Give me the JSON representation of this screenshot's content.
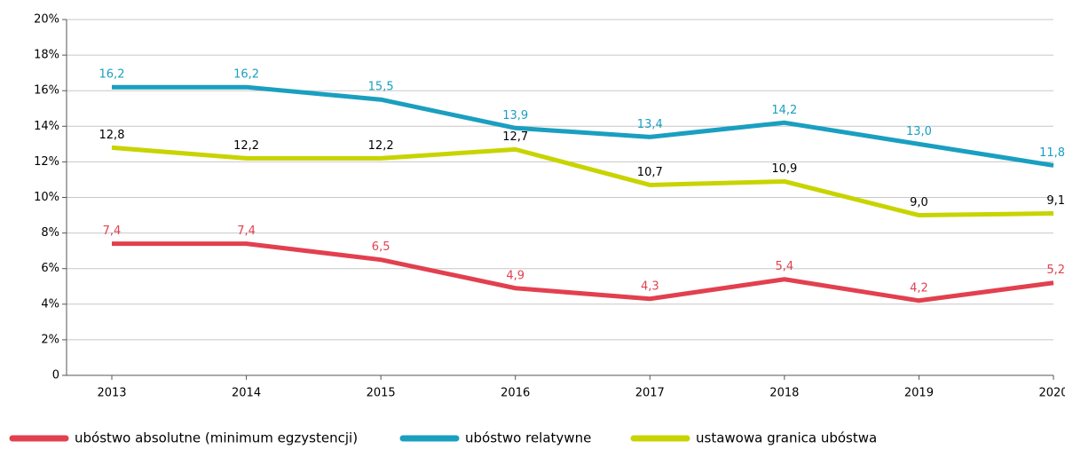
{
  "chart_data": {
    "type": "line",
    "categories": [
      "2013",
      "2014",
      "2015",
      "2016",
      "2017",
      "2018",
      "2019",
      "2020"
    ],
    "series": [
      {
        "name": "ubóstwo absolutne (minimum egzystencji)",
        "color": "#e2404f",
        "label_color": "#e2404f",
        "values": [
          7.4,
          7.4,
          6.5,
          4.9,
          4.3,
          5.4,
          4.2,
          5.2
        ],
        "value_labels": [
          "7,4",
          "7,4",
          "6,5",
          "4,9",
          "4,3",
          "5,4",
          "4,2",
          "5,2"
        ]
      },
      {
        "name": "ubóstwo relatywne",
        "color": "#1a9fc0",
        "label_color": "#1a9fc0",
        "values": [
          16.2,
          16.2,
          15.5,
          13.9,
          13.4,
          14.2,
          13.0,
          11.8
        ],
        "value_labels": [
          "16,2",
          "16,2",
          "15,5",
          "13,9",
          "13,4",
          "14,2",
          "13,0",
          "11,8"
        ]
      },
      {
        "name": "ustawowa granica ubóstwa",
        "color": "#c8d400",
        "label_color": "#000000",
        "values": [
          12.8,
          12.2,
          12.2,
          12.7,
          10.7,
          10.9,
          9.0,
          9.1
        ],
        "value_labels": [
          "12,8",
          "12,2",
          "12,2",
          "12,7",
          "10,7",
          "10,9",
          "9,0",
          "9,1"
        ]
      }
    ],
    "ylim": [
      0,
      20
    ],
    "yticks": [
      0,
      {
        "value": 2,
        "label": "2%"
      },
      {
        "value": 4,
        "label": "4%"
      },
      {
        "value": 6,
        "label": "6%"
      },
      {
        "value": 8,
        "label": "8%"
      },
      {
        "value": 10,
        "label": "10%"
      },
      {
        "value": 12,
        "label": "12%"
      },
      {
        "value": 14,
        "label": "14%"
      },
      {
        "value": 16,
        "label": "16%"
      },
      {
        "value": 18,
        "label": "18%"
      },
      {
        "value": 20,
        "label": "20%"
      }
    ],
    "grid": true,
    "legend": "bottom"
  }
}
